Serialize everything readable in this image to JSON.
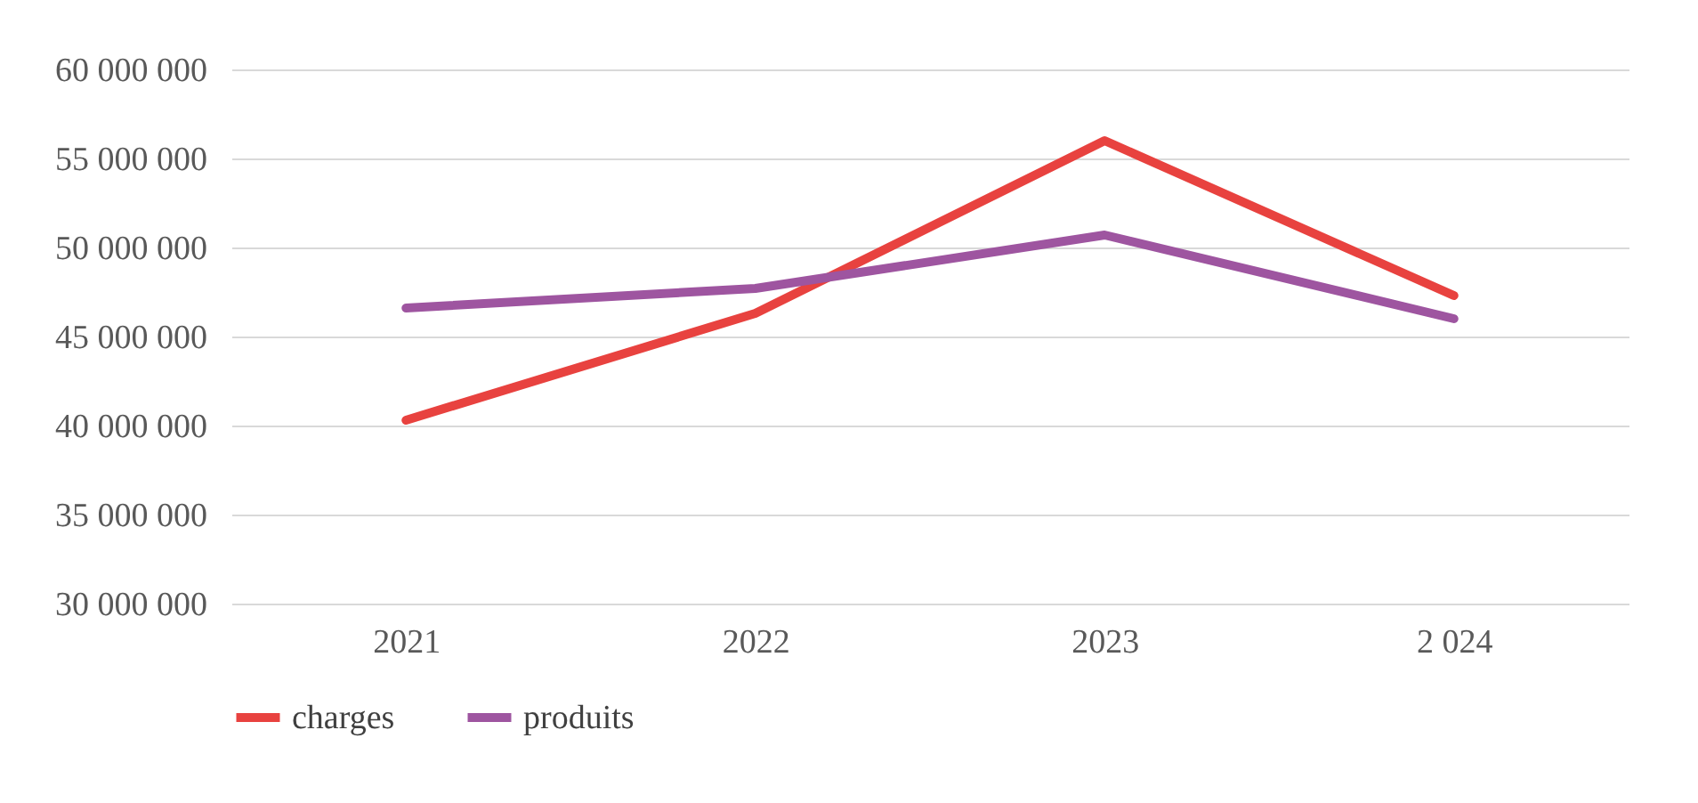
{
  "chart_data": {
    "type": "line",
    "categories": [
      "2021",
      "2022",
      "2023",
      "2 024"
    ],
    "series": [
      {
        "name": "charges",
        "color": "#e8423f",
        "values": [
          40300000,
          46300000,
          56000000,
          47300000
        ]
      },
      {
        "name": "produits",
        "color": "#9e55a0",
        "values": [
          46600000,
          47700000,
          50700000,
          46000000
        ]
      }
    ],
    "ylim": [
      30000000,
      60000000
    ],
    "yticks": [
      {
        "value": 30000000,
        "label": "30 000 000"
      },
      {
        "value": 35000000,
        "label": "35 000 000"
      },
      {
        "value": 40000000,
        "label": "40 000 000"
      },
      {
        "value": 45000000,
        "label": "45 000 000"
      },
      {
        "value": 50000000,
        "label": "50 000 000"
      },
      {
        "value": 55000000,
        "label": "55 000 000"
      },
      {
        "value": 60000000,
        "label": "60 000 000"
      }
    ],
    "grid": "y",
    "legend": "bottom",
    "marker": "none",
    "line_style": "solid"
  }
}
